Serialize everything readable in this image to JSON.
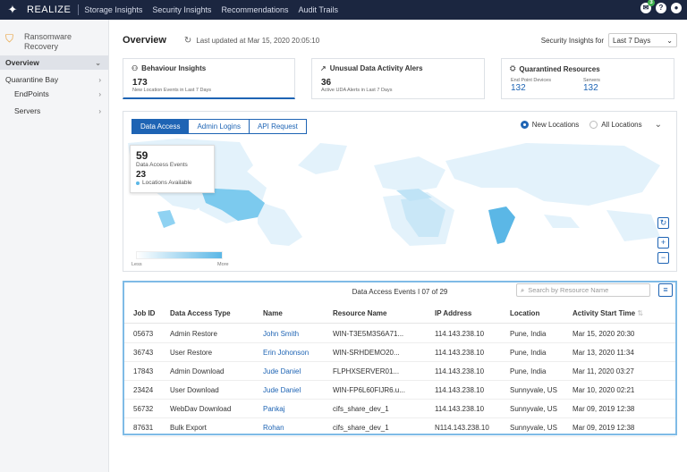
{
  "topbar": {
    "brand": "REALIZE",
    "nav": [
      "Storage Insights",
      "Security Insights",
      "Recommendations",
      "Audit Trails"
    ],
    "badge_count": "3"
  },
  "sidebar": {
    "title_line1": "Ransomware",
    "title_line2": "Recovery",
    "items": [
      {
        "label": "Overview"
      },
      {
        "label": "Quarantine Bay"
      },
      {
        "label": "EndPoints"
      },
      {
        "label": "Servers"
      }
    ]
  },
  "header": {
    "title": "Overview",
    "last_updated": "Last updated at Mar 15, 2020 20:05:10",
    "insights_for_label": "Security Insights for",
    "range": "Last 7 Days"
  },
  "cards": {
    "behaviour": {
      "title": "Behaviour Insights",
      "value": "173",
      "subtitle": "New Location Events in Last 7 Days"
    },
    "uda": {
      "title": "Unusual Data Activity Alers",
      "value": "36",
      "subtitle": "Active UDA Alerts in Last 7 Days"
    },
    "quarantine": {
      "title": "Quarantined Resources",
      "endpoint_label": "End Point Devices",
      "endpoint_value": "132",
      "servers_label": "Servers",
      "servers_value": "132"
    }
  },
  "map": {
    "tabs": [
      "Data Access",
      "Admin Logins",
      "API Request"
    ],
    "radio_new": "New Locations",
    "radio_all": "All Locations",
    "tooltip": {
      "events_value": "59",
      "events_label": "Data Access Events",
      "locations_value": "23",
      "locations_label": "Locations Available"
    },
    "legend_less": "Less",
    "legend_more": "More",
    "accent": "#5bb7e6"
  },
  "table": {
    "caption": "Data Access Events I 07 of  29",
    "search_placeholder": "Search by Resource Name",
    "headers": [
      "Job ID",
      "Data Access Type",
      "Name",
      "Resource Name",
      "IP Address",
      "Location",
      "Activity Start Time"
    ],
    "rows": [
      [
        "05673",
        "Admin Restore",
        "John Smith",
        "WIN-T3E5M3S6A71...",
        "114.143.238.10",
        "Pune, India",
        "Mar 15, 2020 20:30"
      ],
      [
        "36743",
        "User Restore",
        "Erin Johonson",
        "WIN-SRHDEMO20...",
        "114.143.238.10",
        "Pune, India",
        "Mar 13, 2020 11:34"
      ],
      [
        "17843",
        "Admin Download",
        "Jude Daniel",
        "FLPHXSERVER01...",
        "114.143.238.10",
        "Pune, India",
        "Mar 11, 2020 03:27"
      ],
      [
        "23424",
        "User Download",
        "Jude Daniel",
        "WIN-FP6L60FIJR6.u...",
        "114.143.238.10",
        "Sunnyvale, US",
        "Mar 10, 2020 02:21"
      ],
      [
        "56732",
        "WebDav Download",
        "Pankaj",
        "cifs_share_dev_1",
        "114.143.238.10",
        "Sunnyvale, US",
        "Mar 09, 2019 12:38"
      ],
      [
        "87631",
        "Bulk Export",
        "Rohan",
        "cifs_share_dev_1",
        "N114.143.238.10",
        "Sunnyvale, US",
        "Mar 09, 2019 12:38"
      ]
    ]
  }
}
